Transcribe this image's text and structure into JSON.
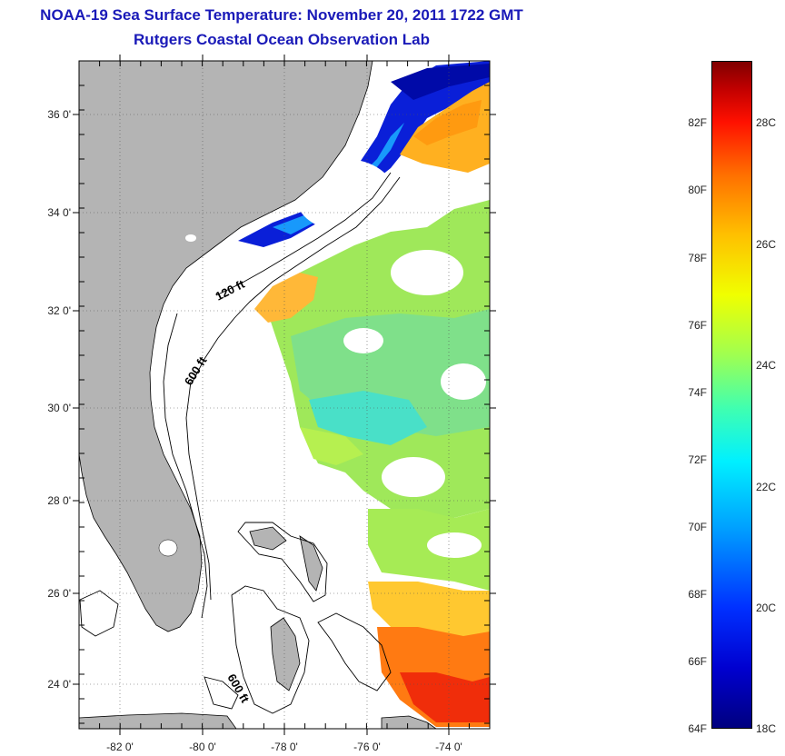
{
  "title_line1": "NOAA-19 Sea Surface Temperature:  November 20, 2011 1722 GMT",
  "title_line2": "Rutgers Coastal Ocean Observation Lab",
  "latitude_labels": [
    "36 0'",
    "34 0'",
    "32 0'",
    "30 0'",
    "28 0'",
    "26 0'",
    "24 0'"
  ],
  "longitude_labels": [
    "-82 0'",
    "-80 0'",
    "-78 0'",
    "-76 0'",
    "-74 0'"
  ],
  "isobath_labels": [
    "120 ft",
    "600 ft",
    "600 ft"
  ],
  "colorbar": {
    "fahrenheit_labels": [
      "82F",
      "80F",
      "78F",
      "76F",
      "74F",
      "72F",
      "70F",
      "68F",
      "66F",
      "64F"
    ],
    "celsius_labels": [
      "28C",
      "26C",
      "24C",
      "22C",
      "20C",
      "18C"
    ],
    "min_temp_c": 18,
    "max_temp_c": 29
  },
  "colors": {
    "title": "#1a1ab8",
    "land": "#b4b4b4",
    "ocean_background": "#ffffff"
  }
}
